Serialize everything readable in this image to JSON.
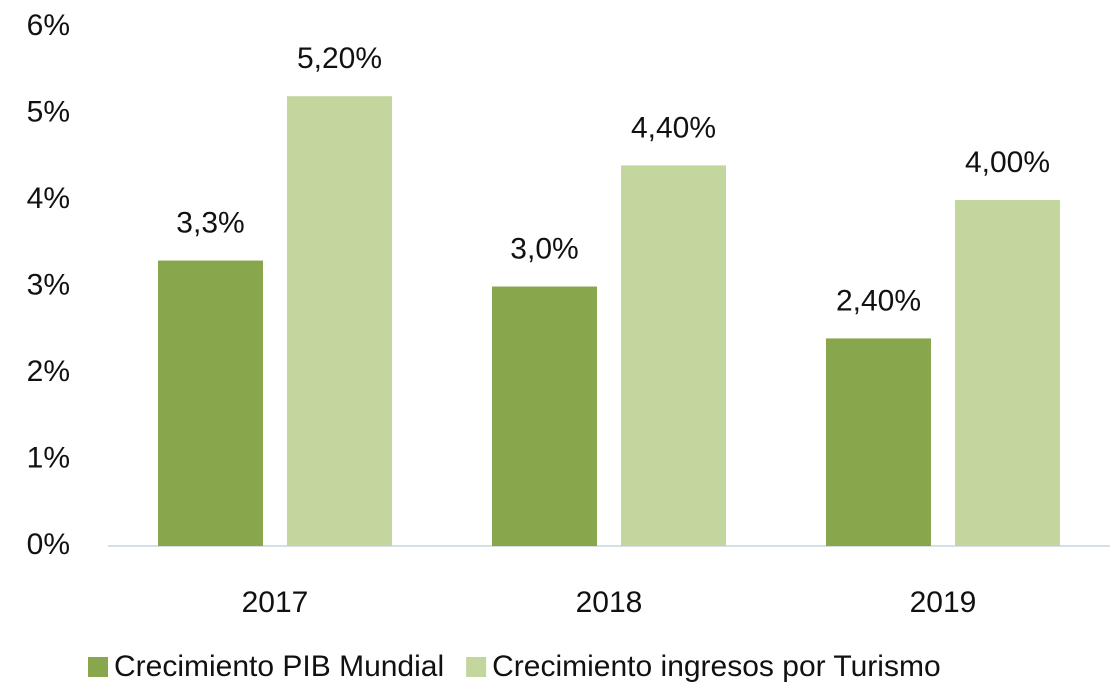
{
  "chart_data": {
    "type": "bar",
    "categories": [
      "2017",
      "2018",
      "2019"
    ],
    "series": [
      {
        "name": "Crecimiento PIB Mundial",
        "color": "#88a74c",
        "values": [
          3.3,
          3.0,
          2.4
        ],
        "value_labels": [
          "3,3%",
          "3,0%",
          "2,40%"
        ]
      },
      {
        "name": "Crecimiento ingresos por Turismo",
        "color": "#c2d69d",
        "values": [
          5.2,
          4.4,
          4.0
        ],
        "value_labels": [
          "5,20%",
          "4,40%",
          "4,00%"
        ]
      }
    ],
    "ylim": [
      0,
      6
    ],
    "yticks": [
      {
        "value": 0,
        "label": "0%"
      },
      {
        "value": 1,
        "label": "1%"
      },
      {
        "value": 2,
        "label": "2%"
      },
      {
        "value": 3,
        "label": "3%"
      },
      {
        "value": 4,
        "label": "4%"
      },
      {
        "value": 5,
        "label": "5%"
      },
      {
        "value": 6,
        "label": "6%"
      }
    ],
    "grid": false,
    "legend": "bottom"
  }
}
